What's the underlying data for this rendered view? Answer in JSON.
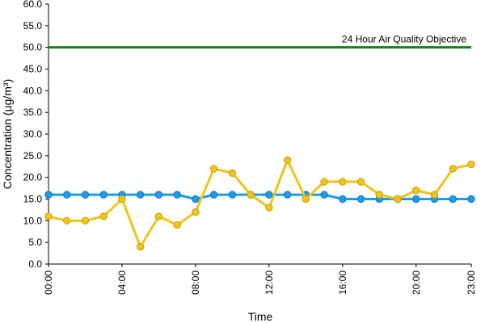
{
  "chart_data": {
    "type": "line",
    "xlabel": "Time",
    "ylabel": "Concentration (µg/m³)",
    "x": [
      "00:00",
      "01:00",
      "02:00",
      "03:00",
      "04:00",
      "05:00",
      "06:00",
      "07:00",
      "08:00",
      "09:00",
      "10:00",
      "11:00",
      "12:00",
      "13:00",
      "14:00",
      "15:00",
      "16:00",
      "17:00",
      "18:00",
      "19:00",
      "20:00",
      "21:00",
      "22:00",
      "23:00"
    ],
    "x_tick_labels": [
      "00:00",
      "04:00",
      "08:00",
      "12:00",
      "16:00",
      "20:00",
      "23:00"
    ],
    "ylim": [
      0,
      60
    ],
    "y_tick_labels": [
      "0.0",
      "5.0",
      "10.0",
      "15.0",
      "20.0",
      "25.0",
      "30.0",
      "35.0",
      "40.0",
      "45.0",
      "50.0",
      "55.0",
      "60.0"
    ],
    "grid": false,
    "series": [
      {
        "color": "#1e9be9",
        "values": [
          16,
          16,
          16,
          16,
          16,
          16,
          16,
          16,
          15,
          16,
          16,
          16,
          16,
          16,
          16,
          16,
          15,
          15,
          15,
          15,
          15,
          15,
          15,
          15
        ]
      },
      {
        "color": "#f0c419",
        "values": [
          11,
          10,
          10,
          11,
          15,
          4,
          11,
          9,
          12,
          22,
          21,
          16,
          13,
          24,
          15,
          19,
          19,
          19,
          16,
          15,
          17,
          16,
          22,
          23
        ]
      }
    ],
    "reference_lines": [
      {
        "label": "24 Hour Air Quality Objective",
        "value": 50,
        "color": "#1e7b1e"
      }
    ]
  }
}
